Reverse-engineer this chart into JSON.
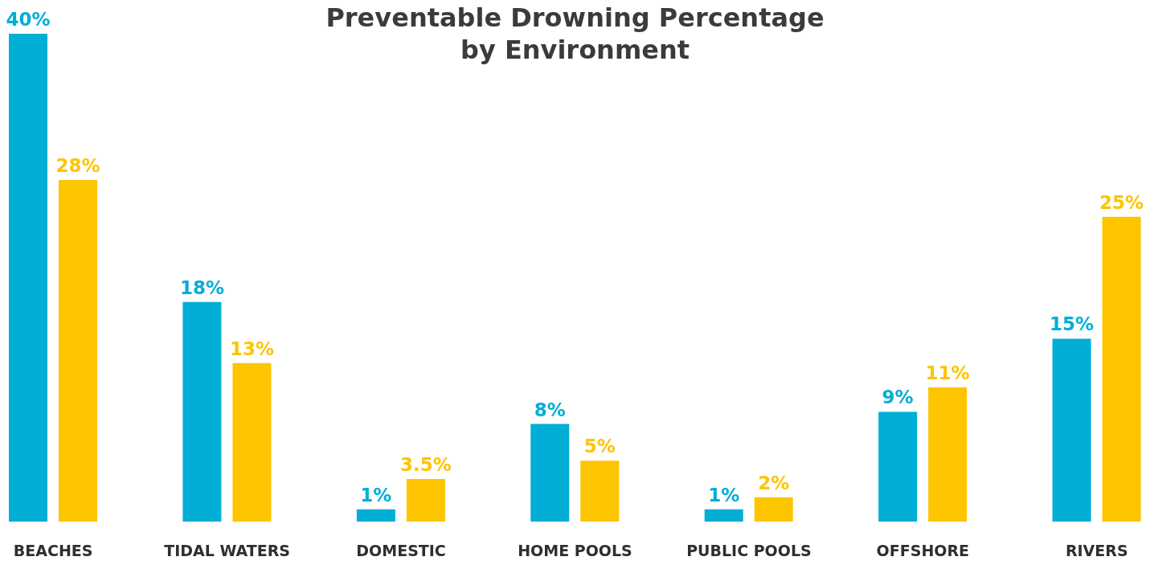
{
  "chart_data": {
    "type": "bar",
    "title": "Preventable Drowning Percentage\nby Environment",
    "categories": [
      "BEACHES",
      "TIDAL WATERS",
      "DOMESTIC",
      "HOME POOLS",
      "PUBLIC POOLS",
      "OFFSHORE",
      "RIVERS"
    ],
    "series": [
      {
        "color": "#00aed6",
        "values": [
          40,
          18,
          1,
          8,
          1,
          9,
          15
        ],
        "value_labels": [
          "40%",
          "18%",
          "1%",
          "8%",
          "1%",
          "9%",
          "15%"
        ]
      },
      {
        "color": "#fdc400",
        "values": [
          28,
          13,
          3.5,
          5,
          2,
          11,
          25
        ],
        "value_labels": [
          "28%",
          "13%",
          "3.5%",
          "5%",
          "2%",
          "11%",
          "25%"
        ]
      }
    ],
    "grid": false,
    "legend": false
  }
}
